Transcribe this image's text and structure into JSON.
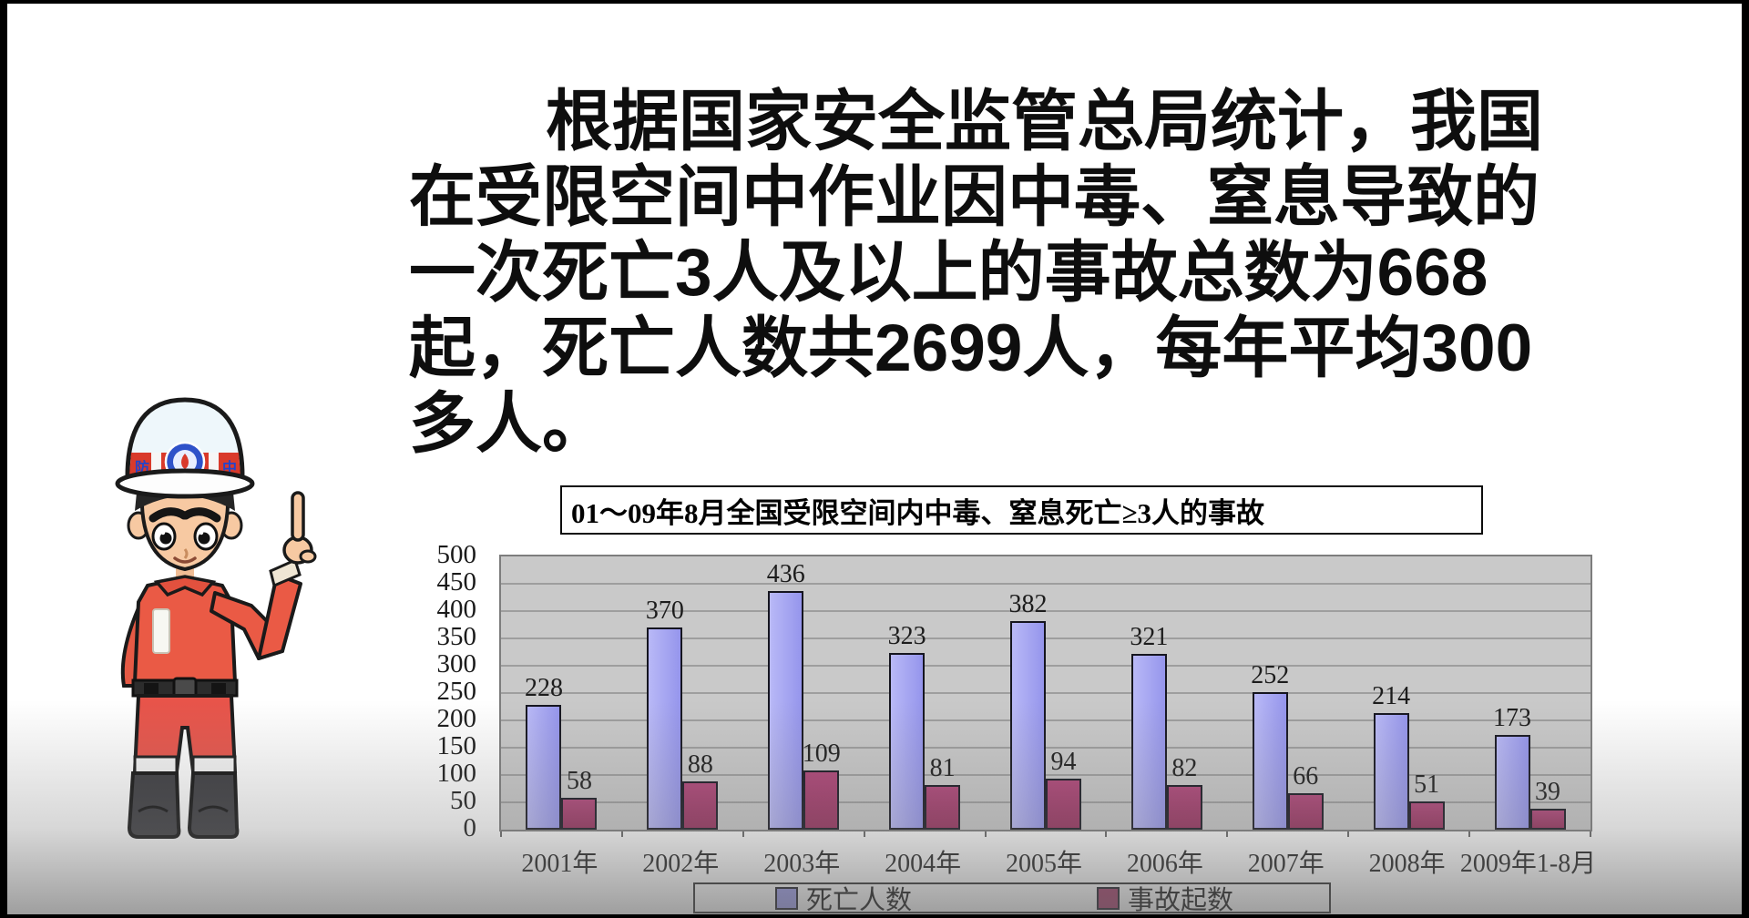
{
  "frame": {
    "border_color": "#000000",
    "background": "#ffffff"
  },
  "paragraph": {
    "lines": [
      "根据国家安全监管总局统计，我国",
      "在受限空间中作业因中毒、窒息导致的",
      "一次死亡3人及以上的事故总数为668",
      "起，死亡人数共2699人，每年平均300",
      "多人。"
    ]
  },
  "character": {
    "helmet_text_left": "防",
    "helmet_text_right": "中"
  },
  "chart_data": {
    "type": "bar",
    "title": "01～09年8月全国受限空间内中毒、窒息死亡≥3人的事故",
    "categories": [
      "2001年",
      "2002年",
      "2003年",
      "2004年",
      "2005年",
      "2006年",
      "2007年",
      "2008年",
      "2009年1-8月"
    ],
    "series": [
      {
        "name": "死亡人数",
        "color": "#9c9cee",
        "values": [
          228,
          370,
          436,
          323,
          382,
          321,
          252,
          214,
          173
        ]
      },
      {
        "name": "事故起数",
        "color": "#a23766",
        "values": [
          58,
          88,
          109,
          81,
          94,
          82,
          66,
          51,
          39
        ]
      }
    ],
    "ylim": [
      0,
      500
    ],
    "ytick_step": 50,
    "grid": true,
    "plot_background": "#c9c9c9",
    "legend_position": "bottom",
    "xlabel": "",
    "ylabel": ""
  }
}
